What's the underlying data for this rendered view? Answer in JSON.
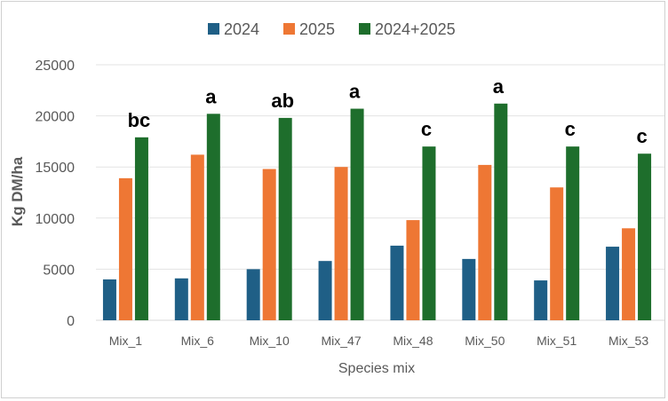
{
  "chart_data": {
    "type": "bar",
    "categories": [
      "Mix_1",
      "Mix_6",
      "Mix_10",
      "Mix_47",
      "Mix_48",
      "Mix_50",
      "Mix_51",
      "Mix_53"
    ],
    "series": [
      {
        "name": "2024",
        "color": "#1f5f86",
        "values": [
          4000,
          4100,
          5000,
          5800,
          7300,
          6000,
          3900,
          7200
        ]
      },
      {
        "name": "2025",
        "color": "#ee7734",
        "values": [
          13900,
          16200,
          14800,
          15000,
          9800,
          15200,
          13000,
          9000
        ]
      },
      {
        "name": "2024+2025",
        "color": "#1e6e2c",
        "values": [
          17900,
          20200,
          19800,
          20700,
          17000,
          21200,
          17000,
          16300
        ]
      }
    ],
    "annotations": [
      "bc",
      "a",
      "ab",
      "a",
      "c",
      "a",
      "c",
      "c"
    ],
    "xlabel": "Species mix",
    "ylabel": "Kg DM/ha",
    "ylim": [
      0,
      25000
    ],
    "yticks": [
      0,
      5000,
      10000,
      15000,
      20000,
      25000
    ],
    "grid": true,
    "legend_position": "top"
  }
}
